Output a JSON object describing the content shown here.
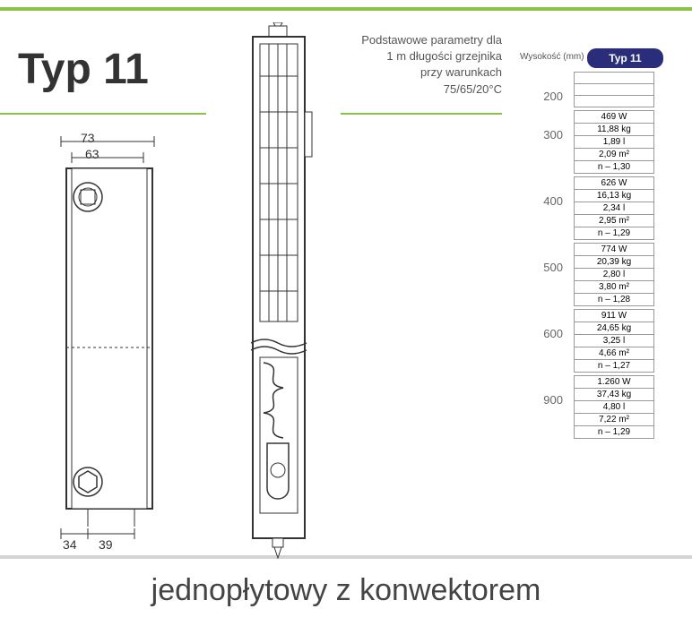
{
  "title": "Typ 11",
  "desc": {
    "line1": "Podstawowe parametry dla",
    "line2": "1 m długości grzejnika",
    "line3": "przy warunkach",
    "line4": "75/65/20°C"
  },
  "column_label": "Wysokość (mm)",
  "column_header": "Typ 11",
  "dimensions": {
    "top_outer": "73",
    "top_inner": "63",
    "bottom_left": "34",
    "bottom_right": "39"
  },
  "bottom_text": "jednopłytowy z konwektorem",
  "spec_groups": [
    {
      "height": "200",
      "rows": [
        "",
        "",
        ""
      ]
    },
    {
      "height": "300",
      "rows": [
        "469 W",
        "11,88 kg",
        "1,89 l",
        "2,09 m²",
        "n – 1,30"
      ]
    },
    {
      "height": "400",
      "rows": [
        "626 W",
        "16,13 kg",
        "2,34 l",
        "2,95 m²",
        "n – 1,29"
      ]
    },
    {
      "height": "500",
      "rows": [
        "774 W",
        "20,39 kg",
        "2,80 l",
        "3,80 m²",
        "n – 1,28"
      ]
    },
    {
      "height": "600",
      "rows": [
        "911 W",
        "24,65 kg",
        "3,25 l",
        "4,66 m²",
        "n – 1,27"
      ]
    },
    {
      "height": "900",
      "rows": [
        "1.260 W",
        "37,43 kg",
        "4,80 l",
        "7,22 m²",
        "n – 1,29"
      ]
    }
  ],
  "colors": {
    "accent": "#8bc34a",
    "header_bg": "#2a2e7a",
    "text": "#333333",
    "subtext": "#666666",
    "border": "#999999"
  }
}
